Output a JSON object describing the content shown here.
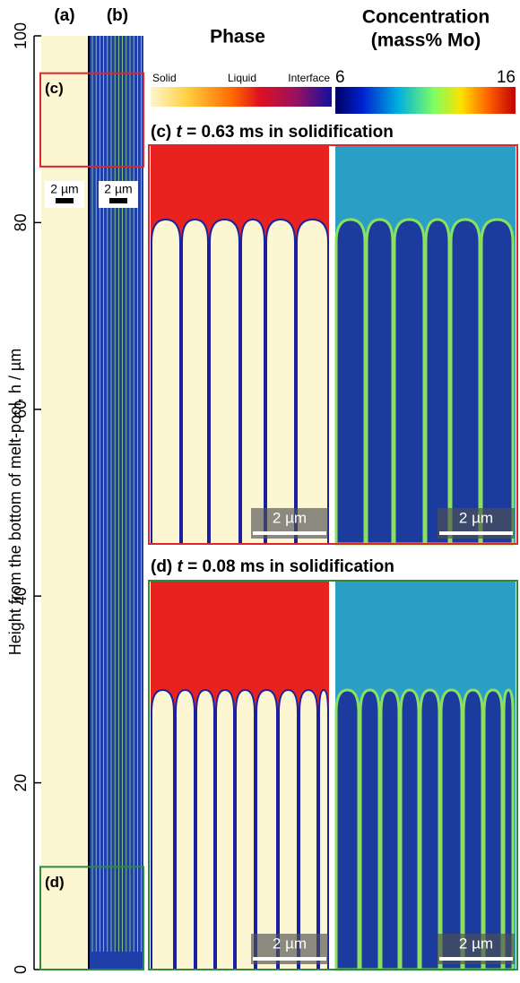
{
  "axis": {
    "label": "Height from the bottom of melt-pool, h / µm",
    "ylim": [
      0,
      100
    ],
    "yticks": [
      0,
      20,
      40,
      60,
      80,
      100
    ]
  },
  "columns": {
    "a": "(a)",
    "b": "(b)",
    "scale_bar": "2 µm"
  },
  "regions": [
    {
      "label": "(c)",
      "range": [
        86,
        96
      ],
      "color": "#e0262b"
    },
    {
      "label": "(d)",
      "range": [
        0,
        11
      ],
      "color": "#2e8b3a"
    }
  ],
  "legend": {
    "phase_title": "Phase",
    "phase_labels": [
      "Solid",
      "Liquid",
      "Interface"
    ],
    "conc_title": [
      "Concentration",
      "(mass% Mo)"
    ],
    "conc_range": [
      6,
      16
    ]
  },
  "insets": [
    {
      "label": "(c)",
      "var": "t",
      "text": "= 0.63 ms in solidification",
      "scale_bar": "2 µm"
    },
    {
      "label": "(d)",
      "var": "t",
      "text": "= 0.08 ms in solidification",
      "scale_bar": "2 µm"
    }
  ]
}
